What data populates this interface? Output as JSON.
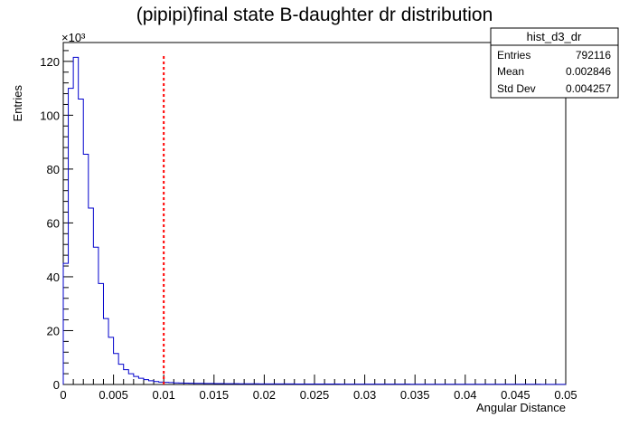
{
  "chart_data": {
    "type": "histogram",
    "title": "(pipipi)final state B-daughter dr distribution",
    "xlabel": "Angular Distance",
    "ylabel": "Entries",
    "y_multiplier_label": "×10³",
    "xlim": [
      0,
      0.05
    ],
    "ylim": [
      0,
      127000
    ],
    "x_ticks": [
      0,
      0.005,
      0.01,
      0.015,
      0.02,
      0.025,
      0.03,
      0.035,
      0.04,
      0.045,
      0.05
    ],
    "x_tick_labels": [
      "0",
      "0.005",
      "0.01",
      "0.015",
      "0.02",
      "0.025",
      "0.03",
      "0.035",
      "0.04",
      "0.045",
      "0.05"
    ],
    "y_ticks": [
      0,
      20000,
      40000,
      60000,
      80000,
      100000,
      120000
    ],
    "y_tick_labels": [
      "0",
      "20",
      "40",
      "60",
      "80",
      "100",
      "120"
    ],
    "bin_width": 0.0005,
    "bin_counts": [
      45000,
      110000,
      121500,
      106000,
      85500,
      65500,
      51000,
      37500,
      24500,
      17500,
      11500,
      7500,
      5500,
      4000,
      3000,
      2300,
      1800,
      1400,
      1100,
      900,
      800,
      700,
      600,
      550,
      500,
      450,
      420,
      400,
      380,
      360,
      340,
      320,
      300,
      290,
      280,
      270,
      260,
      250,
      240,
      230,
      220,
      210,
      200,
      200,
      190,
      190,
      180,
      180,
      170,
      170,
      160,
      160,
      150,
      150,
      150,
      140,
      140,
      140,
      130,
      130,
      130,
      120,
      120,
      120,
      120,
      110,
      110,
      110,
      110,
      100,
      100,
      100,
      100,
      100,
      90,
      90,
      90,
      90,
      90,
      90,
      80,
      80,
      80,
      80,
      80,
      80,
      80,
      70,
      70,
      70,
      70,
      70,
      70,
      70,
      70,
      60,
      60,
      60,
      60,
      60
    ],
    "cut_line": {
      "x": 0.01,
      "color": "#ff0000"
    },
    "line_color": "#0000cc",
    "grid": false,
    "stats_box": {
      "name": "hist_d3_dr",
      "rows": [
        {
          "label": "Entries",
          "value": "792116"
        },
        {
          "label": "Mean",
          "value": "0.002846"
        },
        {
          "label": "Std Dev",
          "value": "0.004257"
        }
      ],
      "placement": "top-right"
    }
  }
}
